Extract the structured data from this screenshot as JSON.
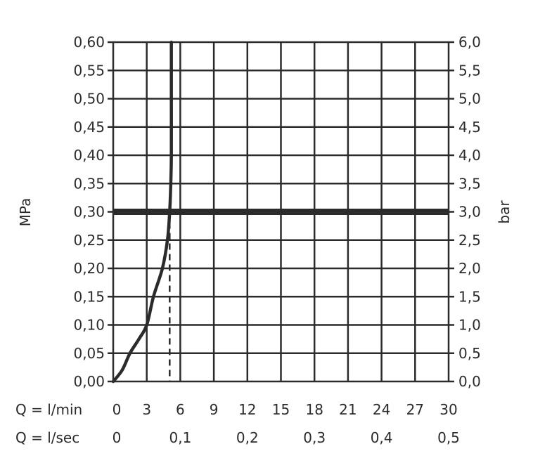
{
  "chart_data": {
    "type": "line",
    "title": "",
    "ylabel_left": "MPa",
    "ylabel_right": "bar",
    "xlabel_rows": [
      {
        "label": "Q = l/min",
        "ticks": [
          "0",
          "3",
          "6",
          "9",
          "12",
          "15",
          "18",
          "21",
          "24",
          "27",
          "30"
        ],
        "values": [
          0,
          3,
          6,
          9,
          12,
          15,
          18,
          21,
          24,
          27,
          30
        ]
      },
      {
        "label": "Q = l/sec",
        "ticks": [
          "0",
          "0,1",
          "0,2",
          "0,3",
          "0,4",
          "0,5"
        ],
        "values": [
          0,
          0.1,
          0.2,
          0.3,
          0.4,
          0.5
        ]
      }
    ],
    "xlim": [
      0,
      30
    ],
    "ylim": [
      0,
      0.6
    ],
    "yticks_left": [
      "0,00",
      "0,05",
      "0,10",
      "0,15",
      "0,20",
      "0,25",
      "0,30",
      "0,35",
      "0,40",
      "0,45",
      "0,50",
      "0,55",
      "0,60"
    ],
    "yticks_right": [
      "0,0",
      "0,5",
      "1,0",
      "1,5",
      "2,0",
      "2,5",
      "3,0",
      "3,5",
      "4,0",
      "4,5",
      "5,0",
      "5,5",
      "6,0"
    ],
    "grid": true,
    "series": [
      {
        "x": [
          0,
          0.8,
          1.5,
          2.3,
          3.0,
          3.6,
          4.4,
          4.85,
          5.05,
          5.15,
          5.2,
          5.2,
          5.2
        ],
        "y": [
          0,
          0.02,
          0.05,
          0.075,
          0.1,
          0.15,
          0.2,
          0.25,
          0.3,
          0.35,
          0.4,
          0.5,
          0.6
        ]
      }
    ],
    "reference_lines": [
      {
        "orientation": "horizontal",
        "y": 0.3,
        "style": "thick"
      },
      {
        "orientation": "vertical",
        "x": 5.05,
        "y_range": [
          0,
          0.3
        ],
        "style": "dashed"
      }
    ],
    "colors": {
      "ink": "#2b2b2b"
    }
  }
}
